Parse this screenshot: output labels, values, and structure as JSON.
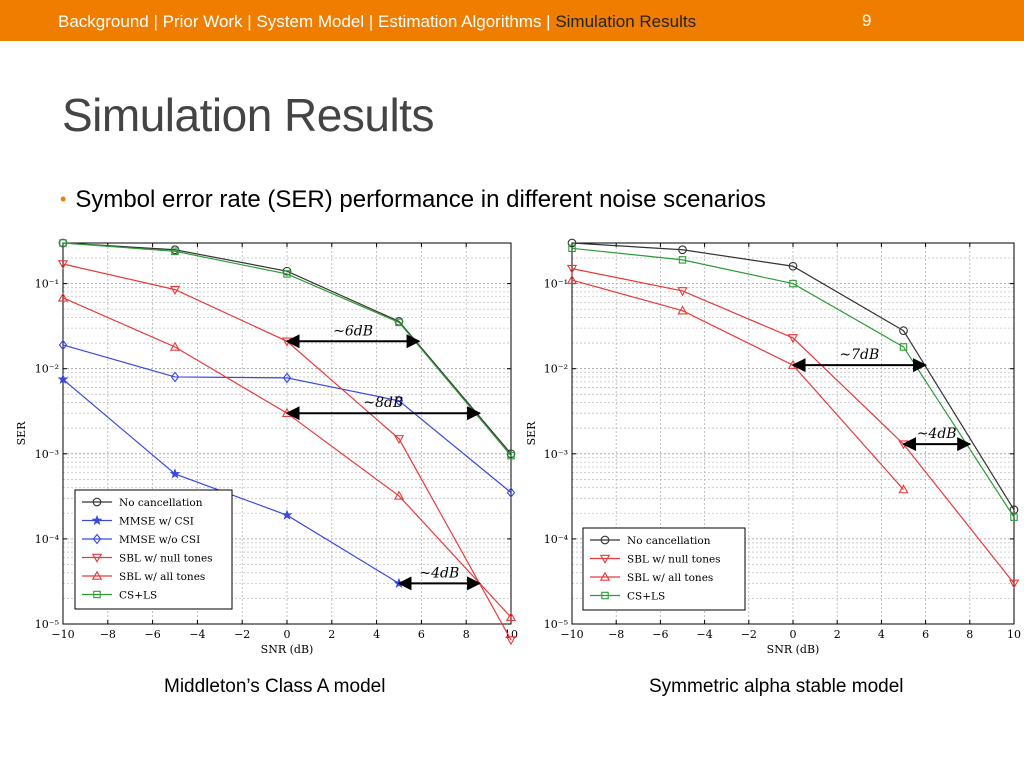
{
  "header": {
    "breadcrumb": "Background | Prior Work | System Model | Estimation Algorithms | ",
    "breadcrumb_active": "Simulation Results",
    "page_number": "9",
    "bar_color": "#ee7d00"
  },
  "slide": {
    "title": "Simulation Results",
    "bullet": "Symbol error rate (SER) performance in different noise scenarios"
  },
  "captions": {
    "left": "Middleton’s Class A model",
    "right": "Symmetric alpha stable model"
  },
  "chart_data": [
    {
      "type": "line",
      "xlabel": "SNR (dB)",
      "ylabel": "SER",
      "xlim": [
        -10,
        10
      ],
      "ylim": [
        1e-05,
        0.3
      ],
      "log_y": true,
      "grid": true,
      "legend_position": "bottom-left",
      "x_ticks": [
        -10,
        -8,
        -6,
        -4,
        -2,
        0,
        2,
        4,
        6,
        8,
        10
      ],
      "x_tick_labels": [
        "−10",
        "−8",
        "−6",
        "−4",
        "−2",
        "0",
        "2",
        "4",
        "6",
        "8",
        "10"
      ],
      "y_ticks": [
        0.1,
        0.01,
        0.001,
        0.0001,
        1e-05
      ],
      "y_tick_labels": [
        "10⁻¹",
        "10⁻²",
        "10⁻³",
        "10⁻⁴",
        "10⁻⁵"
      ],
      "series": [
        {
          "name": "No cancellation",
          "color": "#333333",
          "marker": "circle",
          "x": [
            -10,
            -5,
            0,
            5,
            10
          ],
          "values": [
            0.3,
            0.25,
            0.14,
            0.036,
            0.001
          ]
        },
        {
          "name": "MMSE w/ CSI",
          "color": "#3a49e0",
          "marker": "star",
          "x": [
            -10,
            -5,
            0,
            5
          ],
          "values": [
            0.0075,
            0.00058,
            0.00019,
            3e-05
          ]
        },
        {
          "name": "MMSE w/o CSI",
          "color": "#3a49e0",
          "marker": "diamond",
          "x": [
            -10,
            -5,
            0,
            5,
            10
          ],
          "values": [
            0.019,
            0.008,
            0.0078,
            0.0042,
            0.00035
          ]
        },
        {
          "name": "SBL w/ null tones",
          "color": "#e83a3a",
          "marker": "triangle-down",
          "x": [
            -10,
            -5,
            0,
            5,
            10
          ],
          "values": [
            0.17,
            0.085,
            0.021,
            0.0015,
            6.5e-06
          ]
        },
        {
          "name": "SBL w/ all tones",
          "color": "#e83a3a",
          "marker": "triangle-up",
          "x": [
            -10,
            -5,
            0,
            5,
            10
          ],
          "values": [
            0.068,
            0.018,
            0.003,
            0.00032,
            1.2e-05
          ]
        },
        {
          "name": "CS+LS",
          "color": "#2e9b36",
          "marker": "square",
          "x": [
            -10,
            -5,
            0,
            5,
            10
          ],
          "values": [
            0.3,
            0.24,
            0.13,
            0.035,
            0.00095
          ]
        }
      ],
      "annotations": [
        {
          "text": "~6dB",
          "from": [
            0,
            0.021
          ],
          "to": [
            5.9,
            0.021
          ]
        },
        {
          "text": "~8dB",
          "from": [
            0,
            0.003
          ],
          "to": [
            8.6,
            0.003
          ]
        },
        {
          "text": "~4dB",
          "from": [
            5,
            3e-05
          ],
          "to": [
            8.6,
            3e-05
          ]
        }
      ]
    },
    {
      "type": "line",
      "xlabel": "SNR (dB)",
      "ylabel": "SER",
      "xlim": [
        -10,
        10
      ],
      "ylim": [
        1e-05,
        0.3
      ],
      "log_y": true,
      "grid": true,
      "legend_position": "bottom-left",
      "x_ticks": [
        -10,
        -8,
        -6,
        -4,
        -2,
        0,
        2,
        4,
        6,
        8,
        10
      ],
      "x_tick_labels": [
        "−10",
        "−8",
        "−6",
        "−4",
        "−2",
        "0",
        "2",
        "4",
        "6",
        "8",
        "10"
      ],
      "y_ticks": [
        0.1,
        0.01,
        0.001,
        0.0001,
        1e-05
      ],
      "y_tick_labels": [
        "10⁻¹",
        "10⁻²",
        "10⁻³",
        "10⁻⁴",
        "10⁻⁵"
      ],
      "series": [
        {
          "name": "No cancellation",
          "color": "#333333",
          "marker": "circle",
          "x": [
            -10,
            -5,
            0,
            5,
            10
          ],
          "values": [
            0.3,
            0.25,
            0.16,
            0.028,
            0.00022
          ]
        },
        {
          "name": "SBL w/ null tones",
          "color": "#e83a3a",
          "marker": "triangle-down",
          "x": [
            -10,
            -5,
            0,
            5,
            10
          ],
          "values": [
            0.15,
            0.082,
            0.023,
            0.0013,
            3e-05
          ]
        },
        {
          "name": "SBL w/ all tones",
          "color": "#e83a3a",
          "marker": "triangle-up",
          "x": [
            -10,
            -5,
            0,
            5
          ],
          "values": [
            0.11,
            0.048,
            0.011,
            0.00038
          ]
        },
        {
          "name": "CS+LS",
          "color": "#2e9b36",
          "marker": "square",
          "x": [
            -10,
            -5,
            0,
            5,
            10
          ],
          "values": [
            0.26,
            0.19,
            0.1,
            0.018,
            0.00018
          ]
        }
      ],
      "annotations": [
        {
          "text": "~7dB",
          "from": [
            0,
            0.011
          ],
          "to": [
            6,
            0.011
          ]
        },
        {
          "text": "~4dB",
          "from": [
            5,
            0.0013
          ],
          "to": [
            8,
            0.0013
          ]
        }
      ]
    }
  ]
}
